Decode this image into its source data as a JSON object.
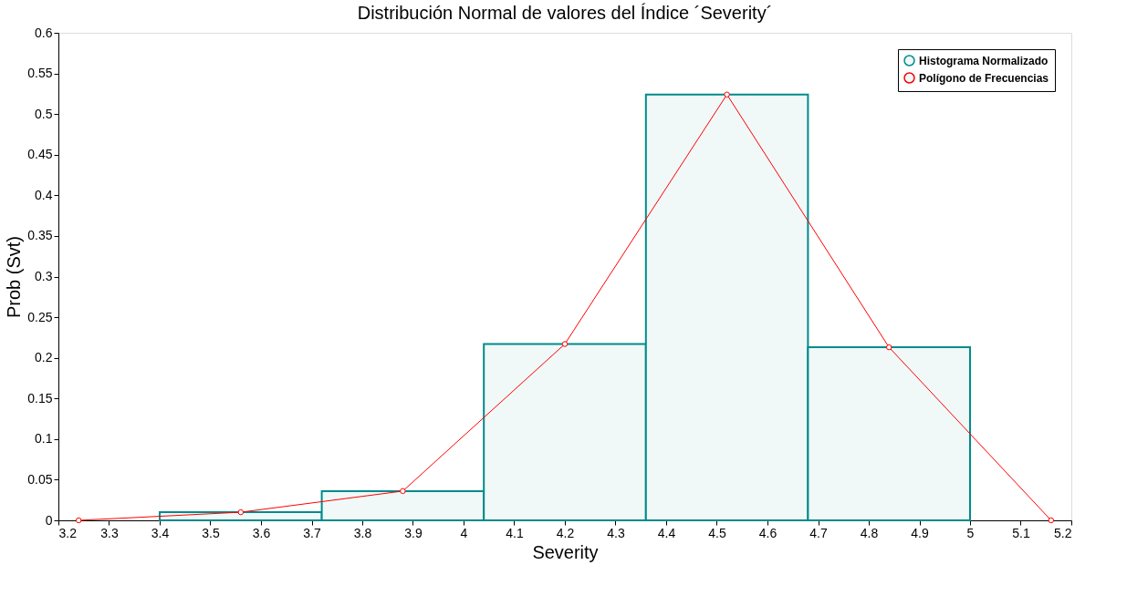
{
  "chart_data": {
    "type": "histogram",
    "title": "Distribución Normal de valores del Índice ´Severity´",
    "xlabel": "Severity",
    "ylabel": "Prob (Svt)",
    "xlim": [
      3.2,
      5.2
    ],
    "xticks": [
      3.2,
      3.3,
      3.4,
      3.5,
      3.6,
      3.7,
      3.8,
      3.9,
      4,
      4.1,
      4.2,
      4.3,
      4.4,
      4.5,
      4.6,
      4.7,
      4.8,
      4.9,
      5,
      5.1,
      5.2
    ],
    "ylim": [
      0,
      0.6
    ],
    "yticks": [
      0,
      0.05,
      0.1,
      0.15,
      0.2,
      0.25,
      0.3,
      0.35,
      0.4,
      0.45,
      0.5,
      0.55,
      0.6
    ],
    "grid": false,
    "legend": "top right",
    "series": [
      {
        "name": "Histograma Normalizado",
        "color": "#008b8b",
        "bins": [
          3.4,
          3.72,
          4.04,
          4.36,
          4.68,
          5.0
        ],
        "values": [
          0.01,
          0.036,
          0.217,
          0.524,
          0.213
        ]
      },
      {
        "name": "Polígono de Frecuencias",
        "type": "line",
        "color": "#ff0000",
        "marker": "circle",
        "x": [
          3.24,
          3.56,
          3.88,
          4.2,
          4.52,
          4.84,
          5.16
        ],
        "values": [
          0,
          0.01,
          0.036,
          0.217,
          0.524,
          0.213,
          0
        ]
      }
    ]
  }
}
